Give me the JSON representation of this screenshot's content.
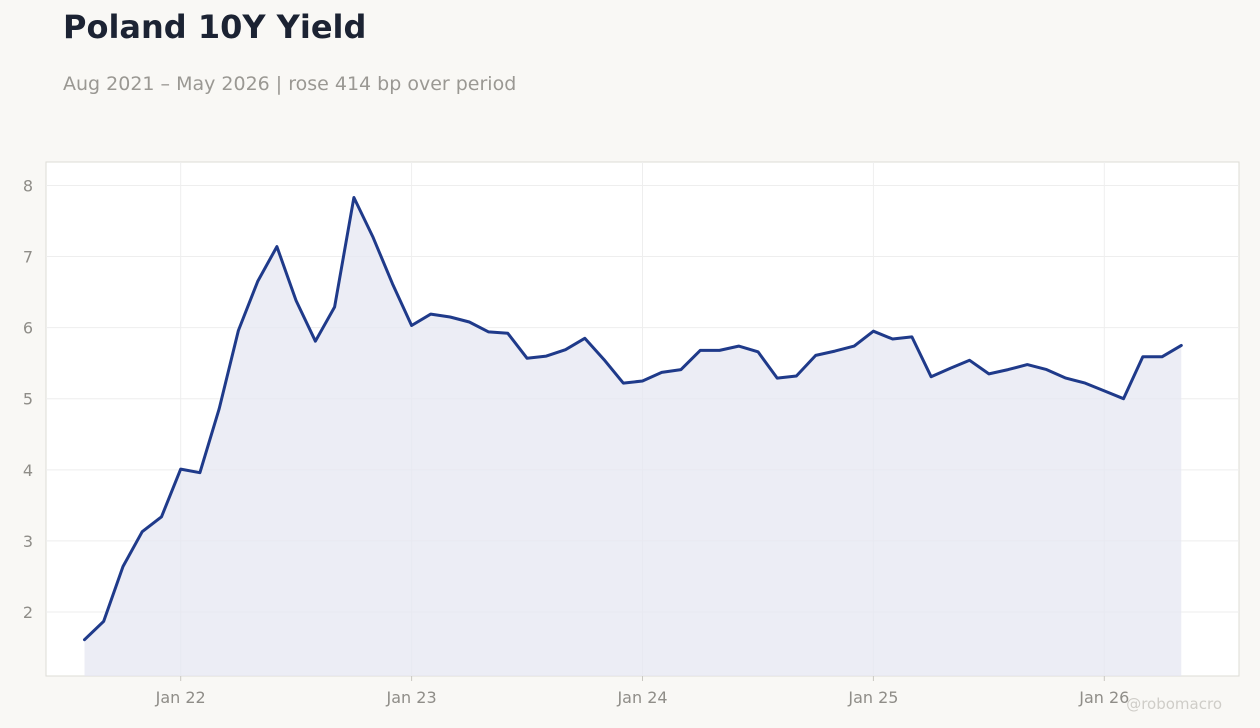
{
  "header": {
    "title": "Poland 10Y Yield",
    "subtitle": "Aug 2021 – May 2026 | rose 414 bp over period",
    "watermark": "@robomacro"
  },
  "colors": {
    "line": "#1f3a8a",
    "fill": "#e6e7f2",
    "plot_background": "#ffffff",
    "grid": "#eeeeee",
    "frame": "#dddcd6"
  },
  "chart_data": {
    "type": "area",
    "title": "Poland 10Y Yield",
    "subtitle": "Aug 2021 – May 2026 | rose 414 bp over period",
    "xlabel": "",
    "ylabel": "",
    "grid": true,
    "legend": "none",
    "x_ticks": [
      {
        "label": "Jan 22",
        "date": "2022-01"
      },
      {
        "label": "Jan 23",
        "date": "2023-01"
      },
      {
        "label": "Jan 24",
        "date": "2024-01"
      },
      {
        "label": "Jan 25",
        "date": "2025-01"
      },
      {
        "label": "Jan 26",
        "date": "2026-01"
      }
    ],
    "y_ticks": [
      2,
      3,
      4,
      5,
      6,
      7,
      8
    ],
    "xlim": [
      "2021-06",
      "2026-08"
    ],
    "ylim": [
      1.1,
      8.33
    ],
    "series": [
      {
        "x": [
          "2021-08",
          "2021-09",
          "2021-10",
          "2021-11",
          "2021-12",
          "2022-01",
          "2022-02",
          "2022-03",
          "2022-04",
          "2022-05",
          "2022-06",
          "2022-07",
          "2022-08",
          "2022-09",
          "2022-10",
          "2022-11",
          "2022-12",
          "2023-01",
          "2023-02",
          "2023-03",
          "2023-04",
          "2023-05",
          "2023-06",
          "2023-07",
          "2023-08",
          "2023-09",
          "2023-10",
          "2023-11",
          "2023-12",
          "2024-01",
          "2024-02",
          "2024-03",
          "2024-04",
          "2024-05",
          "2024-06",
          "2024-07",
          "2024-08",
          "2024-09",
          "2024-10",
          "2024-11",
          "2024-12",
          "2025-01",
          "2025-02",
          "2025-03",
          "2025-04",
          "2025-05",
          "2025-06",
          "2025-07",
          "2025-08",
          "2025-09",
          "2025-10",
          "2025-11",
          "2025-12",
          "2026-01",
          "2026-02",
          "2026-03",
          "2026-04",
          "2026-05"
        ],
        "values": [
          1.61,
          1.87,
          2.64,
          3.13,
          3.34,
          4.01,
          3.96,
          4.86,
          5.96,
          6.65,
          7.14,
          6.38,
          5.81,
          6.29,
          7.83,
          7.27,
          6.62,
          6.03,
          6.19,
          6.15,
          6.08,
          5.94,
          5.92,
          5.57,
          5.6,
          5.69,
          5.85,
          5.55,
          5.22,
          5.25,
          5.37,
          5.41,
          5.68,
          5.68,
          5.74,
          5.66,
          5.29,
          5.32,
          5.61,
          5.67,
          5.74,
          5.95,
          5.84,
          5.87,
          5.31,
          5.43,
          5.54,
          5.35,
          5.41,
          5.48,
          5.41,
          5.29,
          5.22,
          5.11,
          5.0,
          5.59,
          5.59,
          5.75
        ]
      }
    ]
  }
}
